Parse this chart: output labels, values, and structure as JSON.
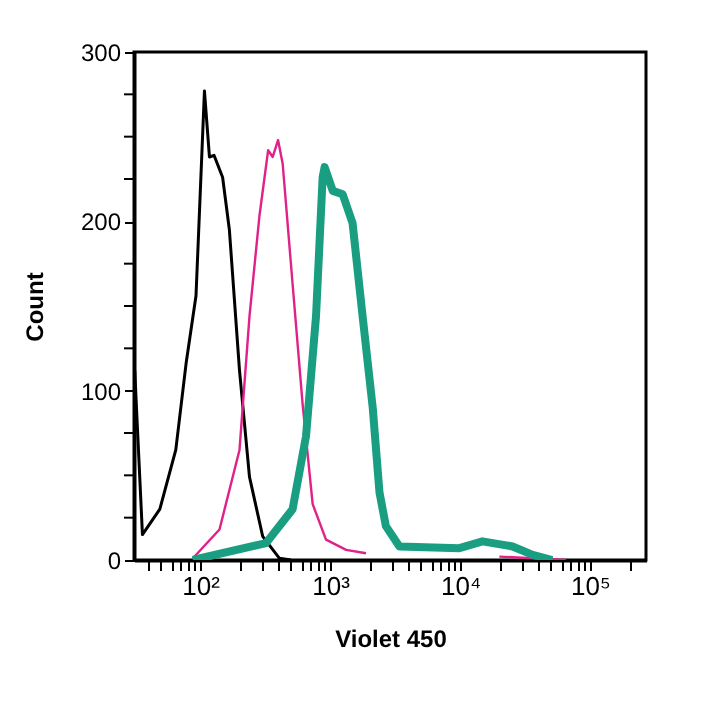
{
  "chart_data": {
    "type": "line",
    "xlabel": "Violet 450",
    "ylabel": "Count",
    "log": "x",
    "grid": false,
    "marker": "none",
    "line_style": "solid",
    "xlim": [
      31,
      270000
    ],
    "ylim": [
      0,
      300
    ],
    "xticks": [
      {
        "value": 40,
        "label": null
      },
      {
        "value": 50,
        "label": null
      },
      {
        "value": 60,
        "label": null
      },
      {
        "value": 70,
        "label": null
      },
      {
        "value": 80,
        "label": null
      },
      {
        "value": 90,
        "label": null
      },
      {
        "value": 100,
        "label": "10²"
      },
      {
        "value": 200,
        "label": null
      },
      {
        "value": 300,
        "label": null
      },
      {
        "value": 400,
        "label": null
      },
      {
        "value": 500,
        "label": null
      },
      {
        "value": 600,
        "label": null
      },
      {
        "value": 700,
        "label": null
      },
      {
        "value": 800,
        "label": null
      },
      {
        "value": 900,
        "label": null
      },
      {
        "value": 1000,
        "label": "10³"
      },
      {
        "value": 2000,
        "label": null
      },
      {
        "value": 3000,
        "label": null
      },
      {
        "value": 4000,
        "label": null
      },
      {
        "value": 5000,
        "label": null
      },
      {
        "value": 6000,
        "label": null
      },
      {
        "value": 7000,
        "label": null
      },
      {
        "value": 8000,
        "label": null
      },
      {
        "value": 9000,
        "label": null
      },
      {
        "value": 10000,
        "label": "10⁴"
      },
      {
        "value": 20000,
        "label": null
      },
      {
        "value": 30000,
        "label": null
      },
      {
        "value": 40000,
        "label": null
      },
      {
        "value": 50000,
        "label": null
      },
      {
        "value": 60000,
        "label": null
      },
      {
        "value": 70000,
        "label": null
      },
      {
        "value": 80000,
        "label": null
      },
      {
        "value": 90000,
        "label": null
      },
      {
        "value": 100000,
        "label": "10⁵"
      },
      {
        "value": 200000,
        "label": null
      }
    ],
    "yticks": [
      0,
      {
        "value": 25,
        "label": null
      },
      {
        "value": 50,
        "label": null
      },
      {
        "value": 75,
        "label": null
      },
      100,
      {
        "value": 125,
        "label": null
      },
      {
        "value": 150,
        "label": null
      },
      {
        "value": 175,
        "label": null
      },
      200,
      {
        "value": 225,
        "label": null
      },
      {
        "value": 250,
        "label": null
      },
      {
        "value": 275,
        "label": null
      },
      300
    ],
    "series": [
      {
        "color": "#000000",
        "x": [
          31.4,
          36,
          49,
          65,
          78,
          93,
          108,
          118,
          128,
          149,
          168,
          201,
          240,
          303,
          408,
          500
        ],
        "values": [
          112,
          15,
          30,
          65,
          116,
          156,
          277,
          238,
          239,
          226,
          195,
          112,
          49,
          14,
          1,
          0
        ]
      },
      {
        "color": "#e0218a",
        "x": [
          88,
          141,
          201,
          240,
          286,
          334,
          362,
          398,
          432,
          515,
          615,
          735,
          931,
          1330,
          1890,
          4870,
          20100,
          65300
        ],
        "values": [
          1,
          18,
          65,
          144,
          203,
          242,
          238,
          248,
          234,
          163,
          92,
          33,
          12,
          6,
          4,
          null,
          2,
          0
        ]
      },
      {
        "color": "#1a9e82",
        "x": [
          88,
          322,
          515,
          653,
          780,
          877,
          908,
          1050,
          1250,
          1490,
          1780,
          2130,
          2400,
          2690,
          3420,
          9890,
          14900,
          25400,
          36300,
          51300
        ],
        "values": [
          0,
          10,
          30,
          73,
          144,
          226,
          232,
          218,
          216,
          199,
          144,
          90,
          40,
          20,
          8,
          7,
          11,
          8,
          3,
          0
        ]
      }
    ]
  }
}
